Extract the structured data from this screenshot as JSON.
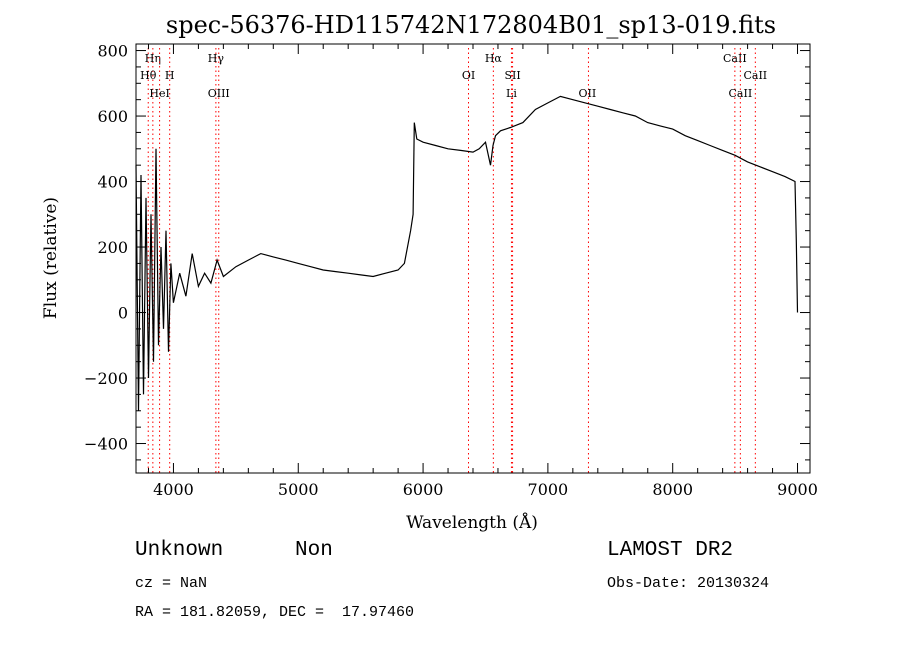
{
  "chart_data": {
    "type": "line",
    "title": "spec-56376-HD115742N172804B01_sp13-019.fits",
    "xlabel": "Wavelength (Å)",
    "ylabel": "Flux (relative)",
    "xlim": [
      3700,
      9100
    ],
    "ylim": [
      -490,
      820
    ],
    "xticks": [
      4000,
      5000,
      6000,
      7000,
      8000,
      9000
    ],
    "yticks": [
      -400,
      -200,
      0,
      200,
      400,
      600,
      800
    ],
    "grid": false,
    "line_color": "#000000",
    "marker_color": "#ff0000",
    "series": [
      {
        "x": [
          3700,
          3720,
          3740,
          3760,
          3780,
          3800,
          3820,
          3840,
          3860,
          3880,
          3900,
          3920,
          3940,
          3960,
          3980,
          4000,
          4050,
          4100,
          4150,
          4200,
          4250,
          4300,
          4350,
          4400,
          4500,
          4600,
          4700,
          4800,
          4900,
          5000,
          5100,
          5200,
          5300,
          5400,
          5500,
          5600,
          5700,
          5800,
          5850,
          5900,
          5920,
          5930,
          5950,
          6000,
          6100,
          6200,
          6300,
          6400,
          6450,
          6500,
          6540,
          6560,
          6580,
          6620,
          6700,
          6800,
          6900,
          7000,
          7100,
          7200,
          7300,
          7400,
          7500,
          7600,
          7700,
          7800,
          7900,
          8000,
          8100,
          8200,
          8300,
          8400,
          8500,
          8600,
          8700,
          8800,
          8900,
          8980,
          8990,
          9000
        ],
        "y": [
          450,
          -300,
          420,
          -250,
          350,
          -200,
          300,
          -150,
          500,
          -100,
          200,
          -50,
          250,
          -120,
          150,
          30,
          120,
          50,
          180,
          80,
          120,
          90,
          160,
          110,
          140,
          160,
          180,
          170,
          160,
          150,
          140,
          130,
          125,
          120,
          115,
          110,
          120,
          130,
          150,
          250,
          300,
          580,
          530,
          520,
          510,
          500,
          495,
          490,
          500,
          520,
          450,
          510,
          540,
          555,
          565,
          580,
          620,
          640,
          660,
          650,
          640,
          630,
          620,
          610,
          600,
          580,
          570,
          560,
          540,
          525,
          510,
          495,
          480,
          460,
          445,
          430,
          415,
          400,
          220,
          0
        ]
      }
    ],
    "line_markers": [
      {
        "label": "Hη",
        "x": 3835,
        "row": 0,
        "align": "center"
      },
      {
        "label": "Hθ",
        "x": 3798,
        "row": 1,
        "align": "center"
      },
      {
        "label": "H",
        "x": 3970,
        "row": 1,
        "align": "center"
      },
      {
        "label": "HeI",
        "x": 3889,
        "row": 2,
        "align": "center"
      },
      {
        "label": "Hγ",
        "x": 4340,
        "row": 0,
        "align": "center"
      },
      {
        "label": "OIII",
        "x": 4363,
        "row": 2,
        "align": "center"
      },
      {
        "label": "Hα",
        "x": 6563,
        "row": 0,
        "align": "center"
      },
      {
        "label": "OI",
        "x": 6364,
        "row": 1,
        "align": "center"
      },
      {
        "label": "SII",
        "x": 6717,
        "row": 1,
        "align": "center"
      },
      {
        "label": "Li",
        "x": 6708,
        "row": 2,
        "align": "center"
      },
      {
        "label": "OII",
        "x": 7325,
        "row": 2,
        "align": "left"
      },
      {
        "label": "CaII",
        "x": 8498,
        "row": 0,
        "align": "center"
      },
      {
        "label": "CaII",
        "x": 8662,
        "row": 1,
        "align": "center"
      },
      {
        "label": "CaII",
        "x": 8542,
        "row": 2,
        "align": "center"
      }
    ]
  },
  "info": {
    "class": "Unknown",
    "subclass": "Non",
    "cz": "cz = NaN",
    "coords": "RA = 181.82059, DEC =  17.97460",
    "survey": "LAMOST DR2",
    "obs_date": "Obs-Date: 20130324"
  }
}
